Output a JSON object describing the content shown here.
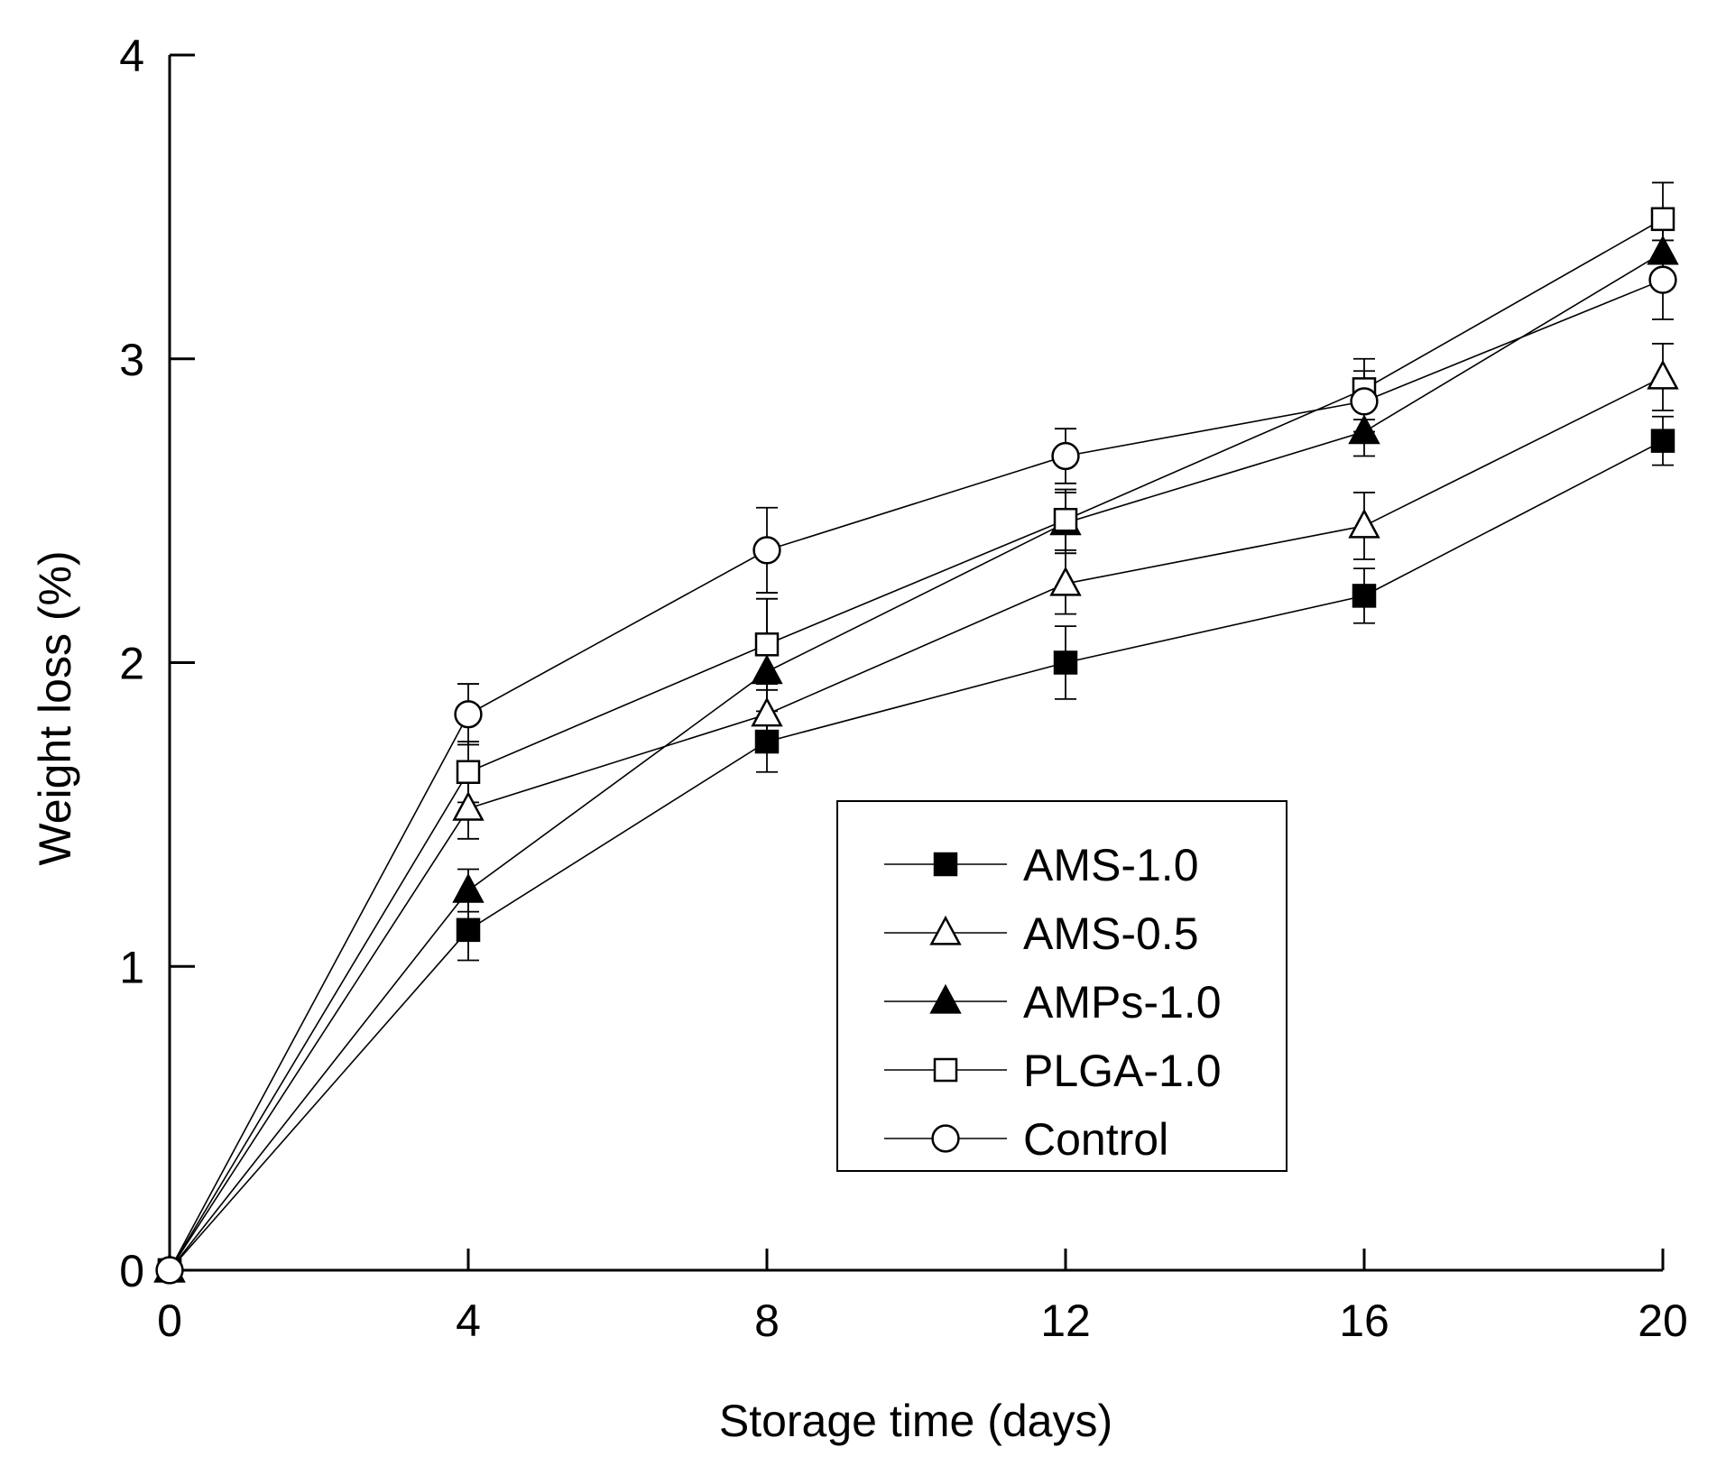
{
  "chart_data": {
    "type": "line",
    "title": "",
    "xlabel": "Storage time (days)",
    "ylabel": "Weight loss (%)",
    "x": [
      0,
      4,
      8,
      12,
      16,
      20
    ],
    "xlim": [
      0,
      20
    ],
    "ylim": [
      0,
      4
    ],
    "xticks": [
      0,
      4,
      8,
      12,
      16,
      20
    ],
    "yticks": [
      0,
      1,
      2,
      3,
      4
    ],
    "legend_position": "center-right",
    "grid": false,
    "series": [
      {
        "name": "AMS-1.0",
        "marker": "square-filled",
        "values": [
          0,
          1.12,
          1.74,
          2.0,
          2.22,
          2.73
        ],
        "errors": [
          0,
          0.1,
          0.1,
          0.12,
          0.09,
          0.08
        ]
      },
      {
        "name": "AMS-0.5",
        "marker": "triangle-open",
        "values": [
          0,
          1.52,
          1.83,
          2.26,
          2.45,
          2.94
        ],
        "errors": [
          0,
          0.1,
          0.1,
          0.1,
          0.11,
          0.11
        ]
      },
      {
        "name": "AMPs-1.0",
        "marker": "triangle-filled",
        "values": [
          0,
          1.25,
          1.97,
          2.46,
          2.76,
          3.35
        ],
        "errors": [
          0,
          0.07,
          0.24,
          0.1,
          0.08,
          0.08
        ]
      },
      {
        "name": "PLGA-1.0",
        "marker": "square-open",
        "values": [
          0,
          1.64,
          2.06,
          2.47,
          2.9,
          3.46
        ],
        "errors": [
          0,
          0.1,
          0.15,
          0.1,
          0.1,
          0.12
        ]
      },
      {
        "name": "Control",
        "marker": "circle-open",
        "values": [
          0,
          1.83,
          2.37,
          2.68,
          2.86,
          3.26
        ],
        "errors": [
          0,
          0.1,
          0.14,
          0.09,
          0.1,
          0.13
        ]
      }
    ]
  }
}
